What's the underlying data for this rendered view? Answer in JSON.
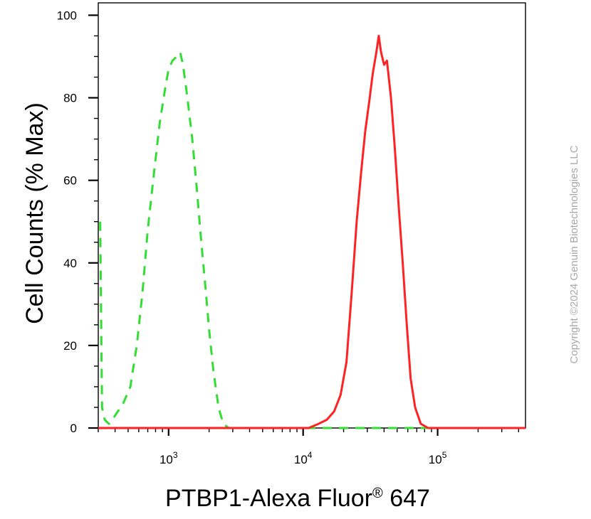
{
  "chart_data": {
    "type": "line",
    "xlabel": "PTBP1-Alexa Fluor",
    "xlabel_sup": "®",
    "xlabel_suffix": " 647",
    "ylabel": "Cell Counts (% Max)",
    "x_scale": "log",
    "xlim": [
      300,
      450000
    ],
    "ylim": [
      0,
      103
    ],
    "x_ticks": [
      {
        "value": 1000,
        "base": "10",
        "exp": "3"
      },
      {
        "value": 10000,
        "base": "10",
        "exp": "4"
      },
      {
        "value": 100000,
        "base": "10",
        "exp": "5"
      }
    ],
    "y_ticks": [
      0,
      20,
      40,
      60,
      80,
      100
    ],
    "grid": false,
    "series": [
      {
        "style": "dashed",
        "color": "#33dd33",
        "points": [
          [
            310,
            50
          ],
          [
            320,
            5
          ],
          [
            335,
            2
          ],
          [
            360,
            1
          ],
          [
            400,
            3
          ],
          [
            460,
            6
          ],
          [
            520,
            10
          ],
          [
            580,
            20
          ],
          [
            640,
            33
          ],
          [
            700,
            48
          ],
          [
            780,
            62
          ],
          [
            860,
            74
          ],
          [
            940,
            82
          ],
          [
            1000,
            87
          ],
          [
            1070,
            89
          ],
          [
            1150,
            90
          ],
          [
            1220,
            91
          ],
          [
            1280,
            88
          ],
          [
            1380,
            80
          ],
          [
            1500,
            70
          ],
          [
            1620,
            58
          ],
          [
            1750,
            45
          ],
          [
            1880,
            34
          ],
          [
            2000,
            24
          ],
          [
            2150,
            14
          ],
          [
            2350,
            5
          ],
          [
            2550,
            1
          ],
          [
            2800,
            0
          ],
          [
            10000,
            0
          ],
          [
            100000,
            0
          ],
          [
            450000,
            0
          ]
        ]
      },
      {
        "style": "solid",
        "color": "#ff2222",
        "points": [
          [
            300,
            0
          ],
          [
            8000,
            0
          ],
          [
            11000,
            0
          ],
          [
            13000,
            1
          ],
          [
            15000,
            2
          ],
          [
            17000,
            4
          ],
          [
            19000,
            8
          ],
          [
            21000,
            16
          ],
          [
            23000,
            33
          ],
          [
            25000,
            50
          ],
          [
            27000,
            62
          ],
          [
            29000,
            72
          ],
          [
            31000,
            79
          ],
          [
            33000,
            86
          ],
          [
            35000,
            91
          ],
          [
            36500,
            95
          ],
          [
            38000,
            91
          ],
          [
            40000,
            88
          ],
          [
            42000,
            89
          ],
          [
            45000,
            80
          ],
          [
            48000,
            68
          ],
          [
            51000,
            55
          ],
          [
            55000,
            40
          ],
          [
            59000,
            25
          ],
          [
            63000,
            12
          ],
          [
            68000,
            5
          ],
          [
            75000,
            1
          ],
          [
            85000,
            0
          ],
          [
            100000,
            0
          ],
          [
            450000,
            0
          ]
        ]
      }
    ]
  },
  "copyright": "Copyright ©2024 Genuin Biotechnologies LLC"
}
